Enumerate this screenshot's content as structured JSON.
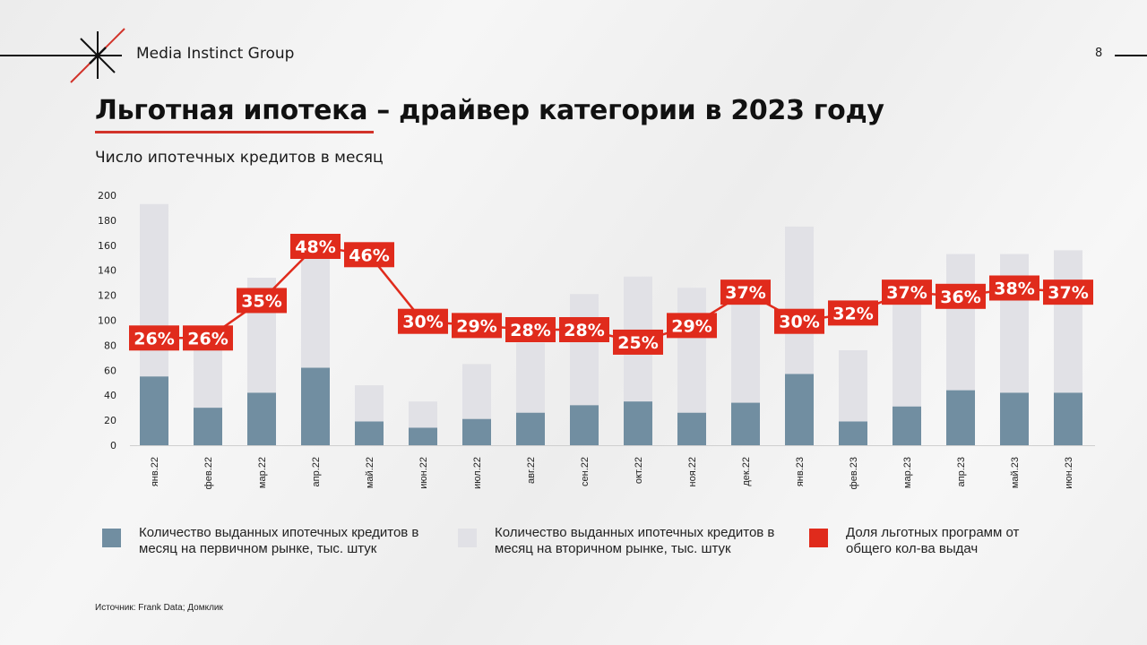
{
  "header": {
    "brand": "Media Instinct Group",
    "page_number": "8",
    "title": "Льготная ипотека – драйвер категории в 2023 году",
    "subtitle": "Число ипотечных кредитов в месяц"
  },
  "colors": {
    "primary_bar": "#718ea1",
    "secondary_bar": "#e1e1e6",
    "share_line": "#e02b1c",
    "accent": "#d2332a"
  },
  "chart_data": {
    "type": "bar",
    "stacked": true,
    "title": "Число ипотечных кредитов в месяц",
    "xlabel": "",
    "ylabel": "",
    "ylim": [
      0,
      200
    ],
    "yticks": [
      0,
      20,
      40,
      60,
      80,
      100,
      120,
      140,
      160,
      180,
      200
    ],
    "grid": false,
    "categories": [
      "янв.22",
      "фев.22",
      "мар.22",
      "апр.22",
      "май.22",
      "июн.22",
      "июл.22",
      "авг.22",
      "сен.22",
      "окт.22",
      "ноя.22",
      "дек.22",
      "янв.23",
      "фев.23",
      "мар.23",
      "апр.23",
      "май.23",
      "июн.23"
    ],
    "series": [
      {
        "name": "Количество выданных ипотечных кредитов в месяц на первичном рынке, тыс. штук",
        "type": "bar",
        "values": [
          55,
          30,
          42,
          62,
          19,
          14,
          21,
          26,
          32,
          35,
          26,
          34,
          57,
          19,
          31,
          44,
          42,
          42
        ]
      },
      {
        "name": "Количество выданных ипотечных кредитов в месяц на вторичном рынке, тыс. штук",
        "type": "bar",
        "values": [
          138,
          52,
          92,
          88,
          29,
          21,
          44,
          56,
          89,
          100,
          100,
          80,
          118,
          57,
          86,
          109,
          111,
          114
        ]
      },
      {
        "name": "Доля льготных программ от общего кол-ва выдач",
        "type": "line",
        "unit": "%",
        "values": [
          26,
          26,
          35,
          48,
          46,
          30,
          29,
          28,
          28,
          25,
          29,
          37,
          30,
          32,
          37,
          36,
          38,
          37
        ]
      }
    ]
  },
  "legend": [
    {
      "label": "Количество выданных ипотечных кредитов в месяц на первичном рынке, тыс. штук",
      "color": "#718ea1"
    },
    {
      "label": "Количество выданных ипотечных кредитов в месяц на вторичном рынке, тыс. штук",
      "color": "#e1e1e6"
    },
    {
      "label": "Доля льготных программ от общего кол-ва выдач",
      "color": "#e02b1c"
    }
  ],
  "footer": {
    "source": "Источник: Frank Data; Домклик"
  }
}
